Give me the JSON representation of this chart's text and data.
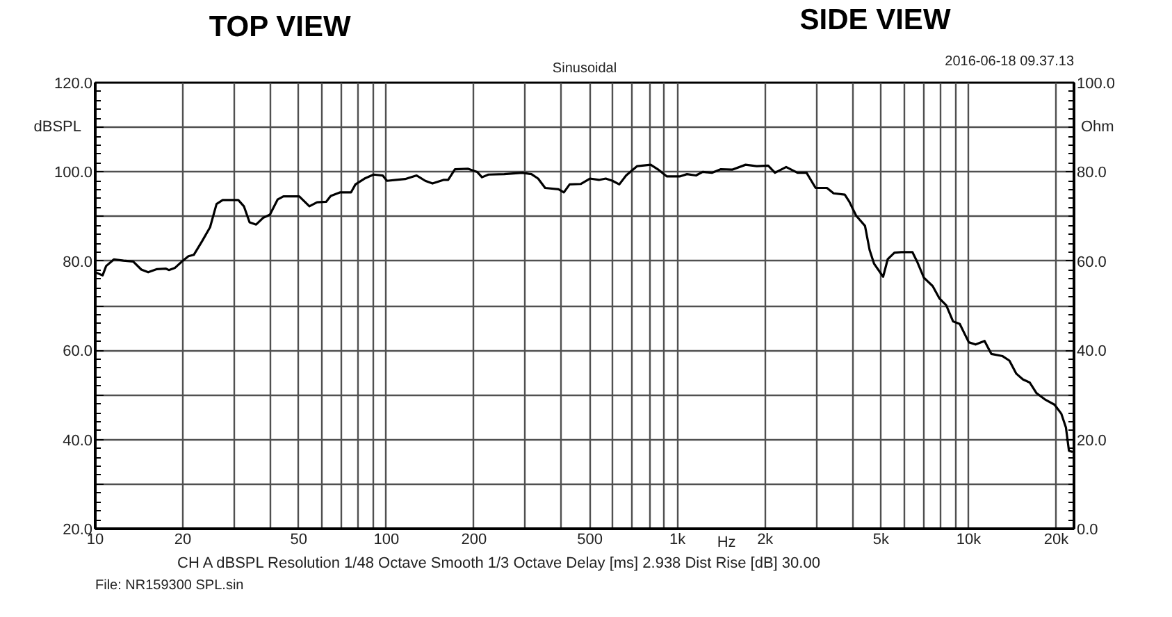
{
  "chart_data": {
    "type": "line",
    "title": "Sinusoidal",
    "ylabel": "dBSPL",
    "y2label": "Ohm",
    "xlabel": "Hz",
    "annotations": [
      "TOP VIEW",
      "SIDE VIEW",
      "2016-06-18 09.37.13",
      "CH A   dBSPL   Resolution 1/48 Octave   Smooth 1/3 Octave   Delay [ms] 2.938   Dist Rise [dB] 30.00",
      "File: NR159300     SPL.sin"
    ],
    "log": "x",
    "grid": true,
    "line_style": "solid",
    "xlim": [
      10,
      23000
    ],
    "ylim": [
      20,
      120
    ],
    "y2lim": [
      0,
      100
    ],
    "xticks": [
      10,
      20,
      {
        "value": 30,
        "label": null
      },
      {
        "value": 40,
        "label": null
      },
      50,
      {
        "value": 60,
        "label": null
      },
      {
        "value": 70,
        "label": null
      },
      {
        "value": 80,
        "label": null
      },
      {
        "value": 90,
        "label": null
      },
      100,
      200,
      {
        "value": 300,
        "label": null
      },
      {
        "value": 400,
        "label": null
      },
      500,
      {
        "value": 600,
        "label": null
      },
      {
        "value": 700,
        "label": null
      },
      {
        "value": 800,
        "label": null
      },
      {
        "value": 900,
        "label": null
      },
      {
        "value": 1000,
        "label": "1k"
      },
      {
        "value": 2000,
        "label": "2k"
      },
      {
        "value": 3000,
        "label": null
      },
      {
        "value": 4000,
        "label": null
      },
      {
        "value": 5000,
        "label": "5k"
      },
      {
        "value": 6000,
        "label": null
      },
      {
        "value": 7000,
        "label": null
      },
      {
        "value": 8000,
        "label": null
      },
      {
        "value": 9000,
        "label": null
      },
      {
        "value": 10000,
        "label": "10k"
      },
      {
        "value": 20000,
        "label": "20k"
      }
    ],
    "yticks": [
      {
        "value": 20,
        "label": "20.0"
      },
      {
        "value": 30,
        "label": null
      },
      {
        "value": 40,
        "label": "40.0"
      },
      {
        "value": 50,
        "label": null
      },
      {
        "value": 60,
        "label": "60.0"
      },
      {
        "value": 70,
        "label": null
      },
      {
        "value": 80,
        "label": "80.0"
      },
      {
        "value": 90,
        "label": null
      },
      {
        "value": 100,
        "label": "100.0"
      },
      {
        "value": 110,
        "label": null
      },
      {
        "value": 120,
        "label": "120.0"
      }
    ],
    "y2ticks": [
      {
        "value": 0,
        "label": "0.0"
      },
      {
        "value": 20,
        "label": "20.0"
      },
      {
        "value": 40,
        "label": "40.0"
      },
      {
        "value": 60,
        "label": "60.0"
      },
      {
        "value": 80,
        "label": "80.0"
      },
      {
        "value": 100,
        "label": "100.0"
      }
    ],
    "series": [
      {
        "color": "#000000",
        "x": [
          10,
          10.6,
          10.9,
          11.6,
          12.5,
          13.5,
          14.4,
          15.2,
          16.3,
          17.5,
          17.9,
          18.8,
          20,
          20.9,
          21.8,
          23.3,
          24.8,
          26.1,
          27.4,
          31,
          32.4,
          33.9,
          35.7,
          37.7,
          39.8,
          42.3,
          44.3,
          50.2,
          54.4,
          57.8,
          62.1,
          64.4,
          69.2,
          75.6,
          78.3,
          84.1,
          90.4,
          97.1,
          100.5,
          108,
          116,
          127,
          136,
          144,
          157,
          163,
          172,
          191,
          205,
          213,
          224,
          254,
          293,
          315,
          332,
          351,
          390,
          407,
          426,
          466,
          500,
          537,
          567,
          598,
          631,
          666,
          727,
          809,
          855,
          918,
          1021,
          1078,
          1157,
          1221,
          1312,
          1409,
          1540,
          1713,
          1872,
          2048,
          2161,
          2361,
          2582,
          2774,
          2981,
          3260,
          3437,
          3754,
          3892,
          4105,
          4405,
          4568,
          4734,
          5084,
          5270,
          5560,
          5866,
          6413,
          6650,
          7017,
          7523,
          7941,
          8375,
          8835,
          9320,
          10010,
          10560,
          11340,
          11960,
          13080,
          13800,
          14560,
          15350,
          16200,
          17100,
          18370,
          19730,
          20800,
          21580,
          22100,
          22750
        ],
        "values": [
          77.5,
          76.8,
          78.9,
          80.4,
          80.1,
          79.9,
          78.1,
          77.5,
          78.2,
          78.3,
          78.0,
          78.5,
          80.1,
          81.1,
          81.4,
          84.5,
          87.6,
          92.8,
          93.7,
          93.7,
          92.3,
          88.7,
          88.2,
          89.7,
          90.4,
          93.8,
          94.5,
          94.5,
          92.3,
          93.2,
          93.3,
          94.6,
          95.4,
          95.4,
          97.2,
          98.5,
          99.4,
          99.2,
          98.0,
          98.2,
          98.4,
          99.2,
          98.0,
          97.4,
          98.2,
          98.2,
          100.6,
          100.7,
          100.0,
          98.8,
          99.4,
          99.5,
          99.8,
          99.5,
          98.5,
          96.4,
          96.1,
          95.4,
          97.2,
          97.3,
          98.5,
          98.2,
          98.5,
          98.0,
          97.2,
          99.2,
          101.3,
          101.6,
          100.6,
          99.0,
          99.0,
          99.5,
          99.2,
          100.0,
          99.8,
          100.6,
          100.5,
          101.6,
          101.3,
          101.4,
          99.8,
          101.1,
          99.8,
          99.8,
          96.4,
          96.4,
          95.2,
          94.9,
          93.3,
          90.2,
          87.9,
          82.5,
          79.4,
          76.5,
          80.4,
          81.9,
          82.0,
          82.0,
          79.9,
          76.3,
          74.4,
          71.6,
          70.1,
          66.5,
          65.9,
          61.8,
          61.3,
          62.1,
          59.2,
          58.7,
          57.7,
          54.8,
          53.5,
          52.8,
          50.4,
          48.9,
          47.8,
          45.8,
          42.7,
          37.5,
          37.2
        ]
      }
    ]
  }
}
